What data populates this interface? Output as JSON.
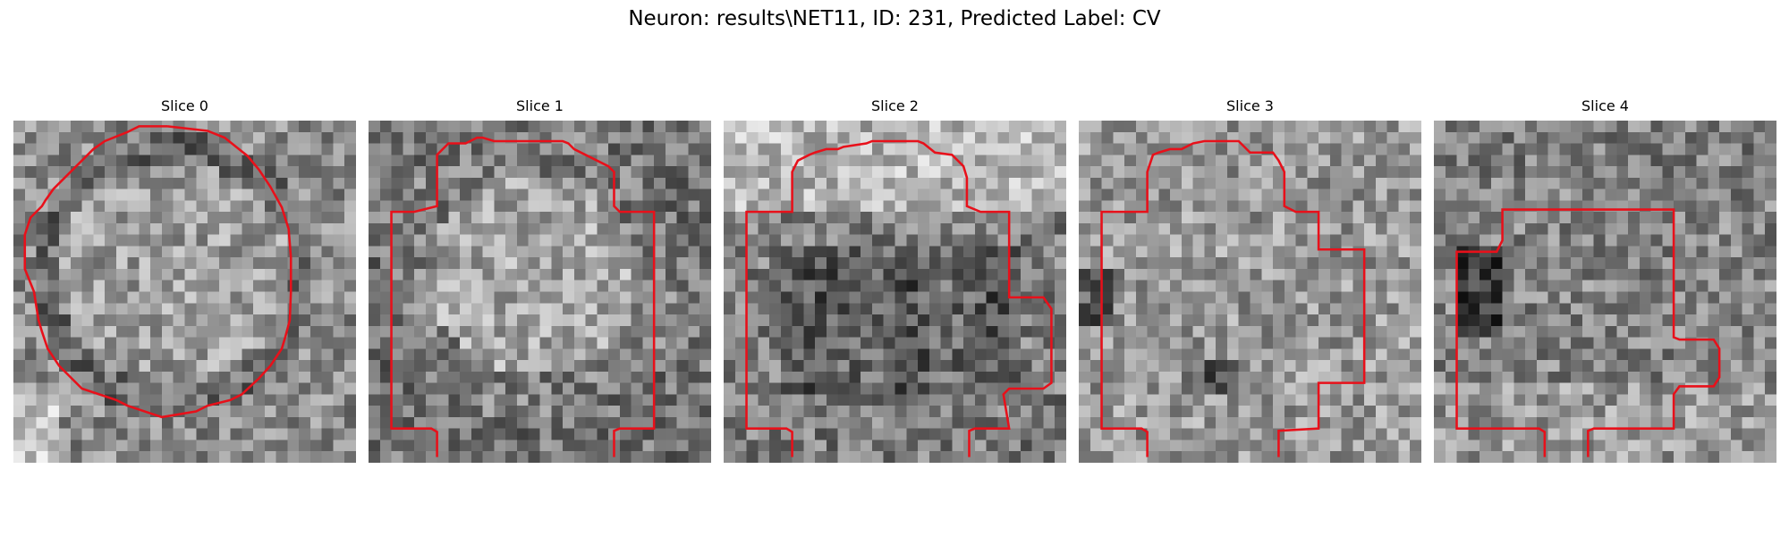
{
  "figure": {
    "title": "Neuron: results\\NET11, ID: 231, Predicted Label: CV"
  },
  "contour_color": "#e8101a",
  "colormap": "gray",
  "slices": [
    {
      "title": "Slice 0"
    },
    {
      "title": "Slice 1"
    },
    {
      "title": "Slice 2"
    },
    {
      "title": "Slice 3"
    },
    {
      "title": "Slice 4"
    }
  ]
}
